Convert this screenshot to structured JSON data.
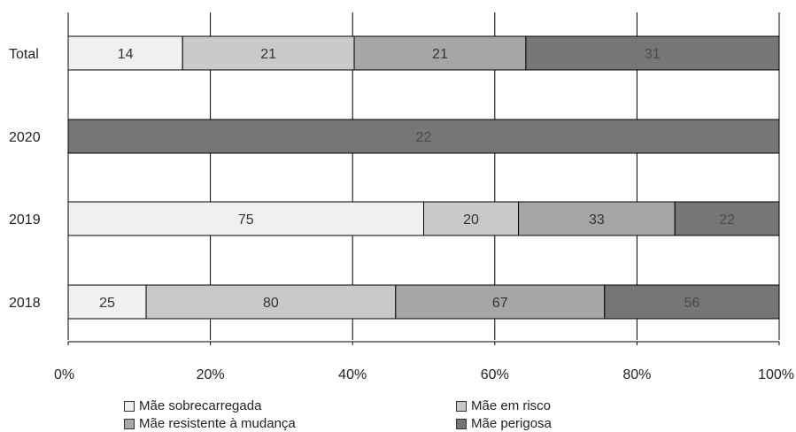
{
  "chart_data": {
    "type": "bar",
    "orientation": "horizontal",
    "stacked": "100%",
    "categories": [
      "Total",
      "2020",
      "2019",
      "2018"
    ],
    "series": [
      {
        "name": "Mãe sobrecarregada",
        "color": "#f0f0f0",
        "values": [
          14,
          null,
          75,
          25
        ]
      },
      {
        "name": "Mãe em risco",
        "color": "#c9c9c9",
        "values": [
          21,
          null,
          20,
          80
        ]
      },
      {
        "name": "Mãe resistente à mudança",
        "color": "#a6a6a6",
        "values": [
          21,
          null,
          33,
          67
        ]
      },
      {
        "name": "Mãe perigosa",
        "color": "#767676",
        "values": [
          31,
          22,
          22,
          56
        ]
      }
    ],
    "xticks": [
      "0%",
      "20%",
      "40%",
      "60%",
      "80%",
      "100%"
    ],
    "xlim": [
      0,
      100
    ],
    "grid": "vertical",
    "legend": "bottom"
  }
}
